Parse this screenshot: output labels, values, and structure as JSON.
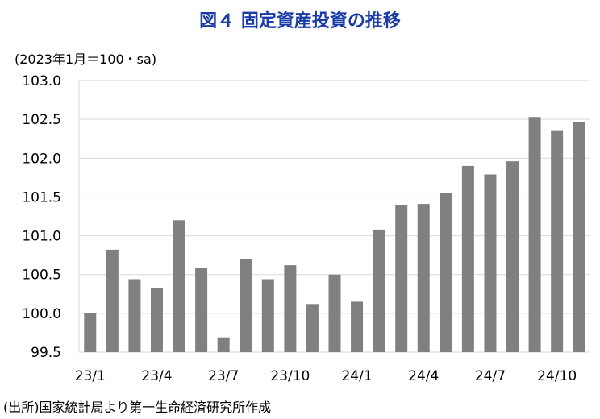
{
  "chart_data": {
    "type": "bar",
    "title": "図４ 固定資産投資の推移",
    "ylabel": "(2023年1月＝100・sa)",
    "source": "(出所)国家統計局より第一生命経済研究所作成",
    "categories": [
      "23/1",
      "23/2",
      "23/3",
      "23/4",
      "23/5",
      "23/6",
      "23/7",
      "23/8",
      "23/9",
      "23/10",
      "23/11",
      "23/12",
      "24/1",
      "24/2",
      "24/3",
      "24/4",
      "24/5",
      "24/6",
      "24/7",
      "24/8",
      "24/9",
      "24/10",
      "24/11"
    ],
    "x_tick_labels": [
      "23/1",
      "23/4",
      "23/7",
      "23/10",
      "24/1",
      "24/4",
      "24/7",
      "24/10"
    ],
    "values": [
      100.0,
      100.82,
      100.44,
      100.33,
      101.2,
      100.58,
      99.69,
      100.7,
      100.44,
      100.62,
      100.12,
      100.5,
      100.15,
      101.08,
      101.4,
      101.41,
      101.55,
      101.9,
      101.79,
      101.96,
      102.53,
      102.36,
      102.47
    ],
    "ylim": [
      99.5,
      103.0
    ],
    "y_ticks": [
      "99.5",
      "100.0",
      "100.5",
      "101.0",
      "101.5",
      "102.0",
      "102.5",
      "103.0"
    ],
    "grid": true,
    "bar_color": "#808080",
    "title_color": "#1a3ca8"
  }
}
